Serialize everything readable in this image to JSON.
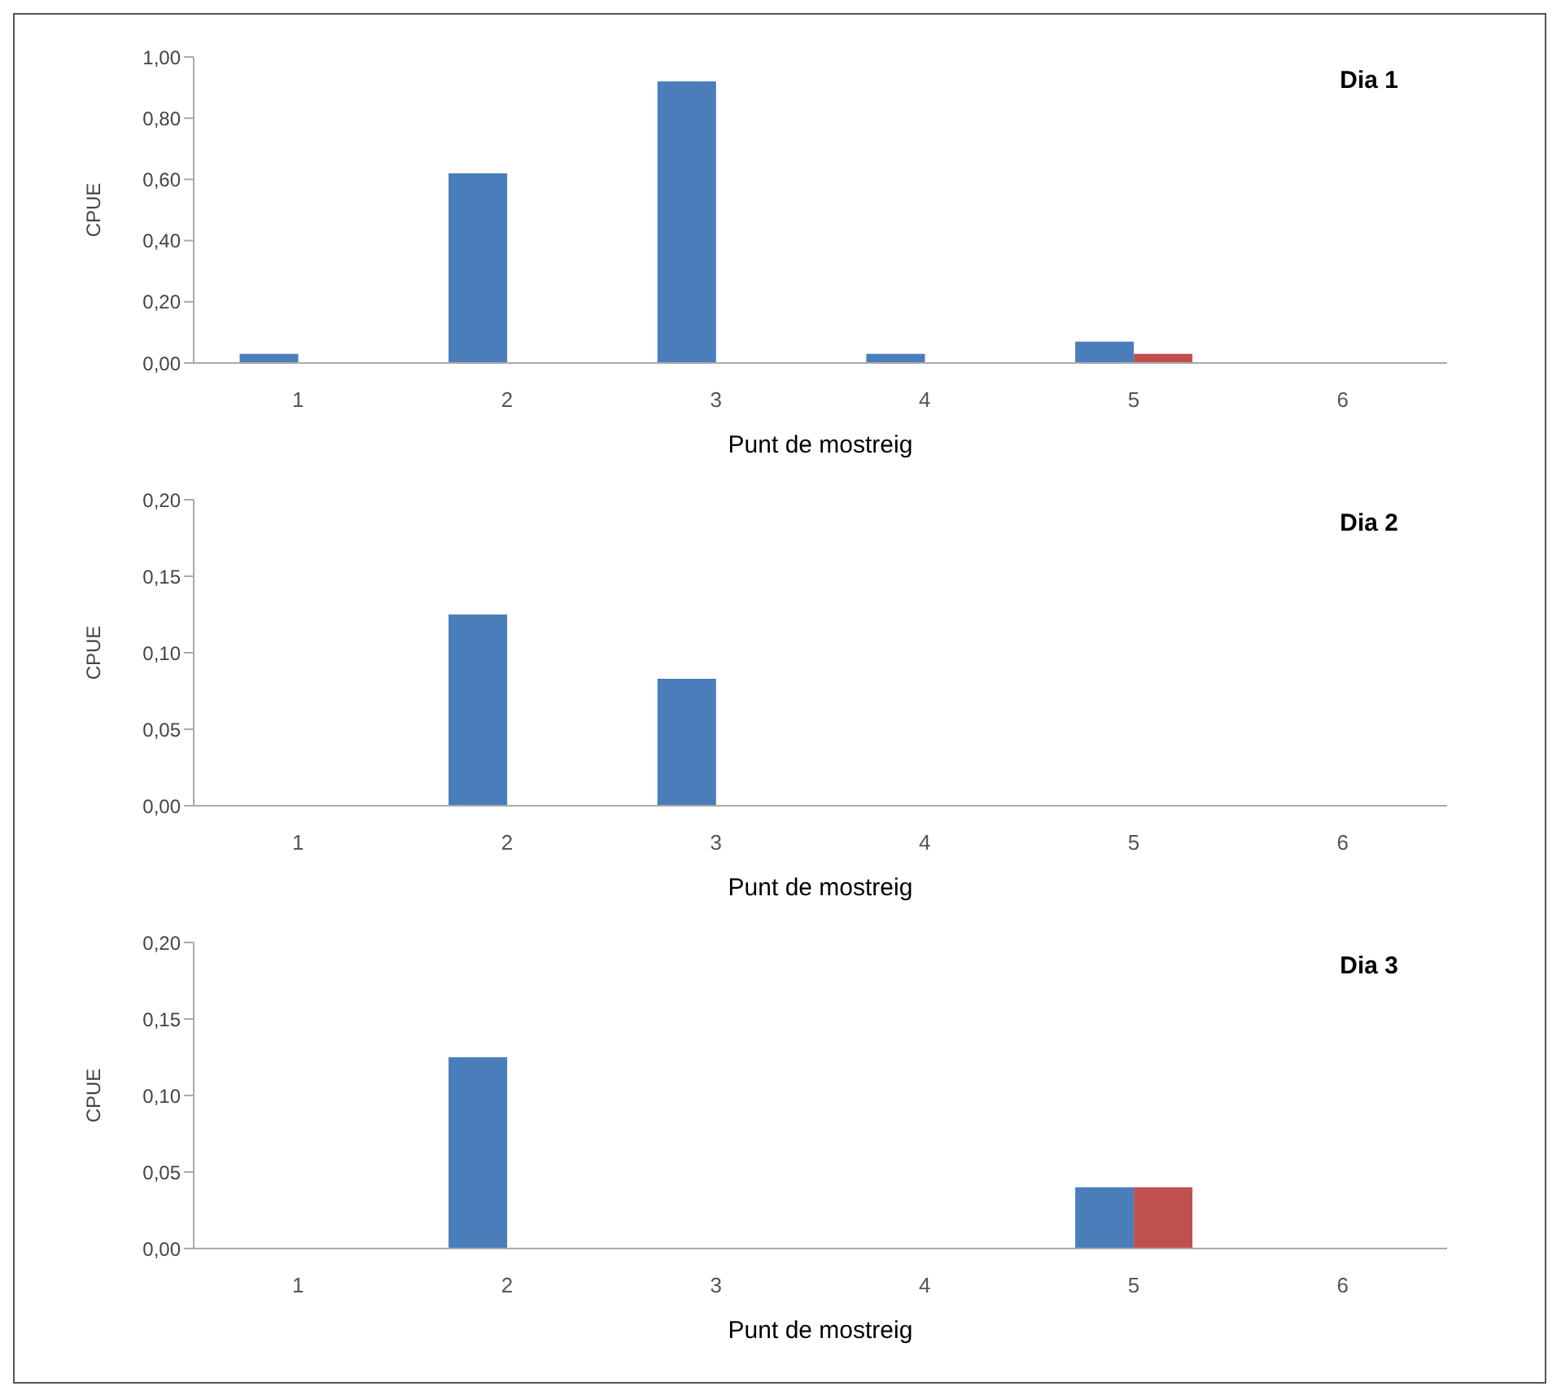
{
  "chart_data": [
    {
      "type": "bar",
      "title": "Dia 1",
      "xlabel": "Punt de mostreig",
      "ylabel": "CPUE",
      "categories": [
        "1",
        "2",
        "3",
        "4",
        "5",
        "6"
      ],
      "series": [
        {
          "color": "#4a7ebb",
          "values": [
            0.03,
            0.62,
            0.92,
            0.03,
            0.07,
            0
          ]
        },
        {
          "color": "#c0504d",
          "values": [
            0,
            0,
            0,
            0,
            0.03,
            0
          ]
        }
      ],
      "ylim": [
        0,
        1
      ],
      "yticks": [
        {
          "value": 0,
          "label": "0,00"
        },
        {
          "value": 0.2,
          "label": "0,20"
        },
        {
          "value": 0.4,
          "label": "0,40"
        },
        {
          "value": 0.6,
          "label": "0,60"
        },
        {
          "value": 0.8,
          "label": "0,80"
        },
        {
          "value": 1,
          "label": "1,00"
        }
      ]
    },
    {
      "type": "bar",
      "title": "Dia 2",
      "xlabel": "Punt de mostreig",
      "ylabel": "CPUE",
      "categories": [
        "1",
        "2",
        "3",
        "4",
        "5",
        "6"
      ],
      "series": [
        {
          "color": "#4a7ebb",
          "values": [
            0,
            0.125,
            0.083,
            0,
            0,
            0
          ]
        },
        {
          "color": "#c0504d",
          "values": [
            0,
            0,
            0,
            0,
            0,
            0
          ]
        }
      ],
      "ylim": [
        0,
        0.2
      ],
      "yticks": [
        {
          "value": 0,
          "label": "0,00"
        },
        {
          "value": 0.05,
          "label": "0,05"
        },
        {
          "value": 0.1,
          "label": "0,10"
        },
        {
          "value": 0.15,
          "label": "0,15"
        },
        {
          "value": 0.2,
          "label": "0,20"
        }
      ]
    },
    {
      "type": "bar",
      "title": "Dia 3",
      "xlabel": "Punt de mostreig",
      "ylabel": "CPUE",
      "categories": [
        "1",
        "2",
        "3",
        "4",
        "5",
        "6"
      ],
      "series": [
        {
          "color": "#4a7ebb",
          "values": [
            0,
            0.125,
            0,
            0,
            0.04,
            0
          ]
        },
        {
          "color": "#c0504d",
          "values": [
            0,
            0,
            0,
            0,
            0.04,
            0
          ]
        }
      ],
      "ylim": [
        0,
        0.2
      ],
      "yticks": [
        {
          "value": 0,
          "label": "0,00"
        },
        {
          "value": 0.05,
          "label": "0,05"
        },
        {
          "value": 0.1,
          "label": "0,10"
        },
        {
          "value": 0.15,
          "label": "0,15"
        },
        {
          "value": 0.2,
          "label": "0,20"
        }
      ]
    }
  ]
}
